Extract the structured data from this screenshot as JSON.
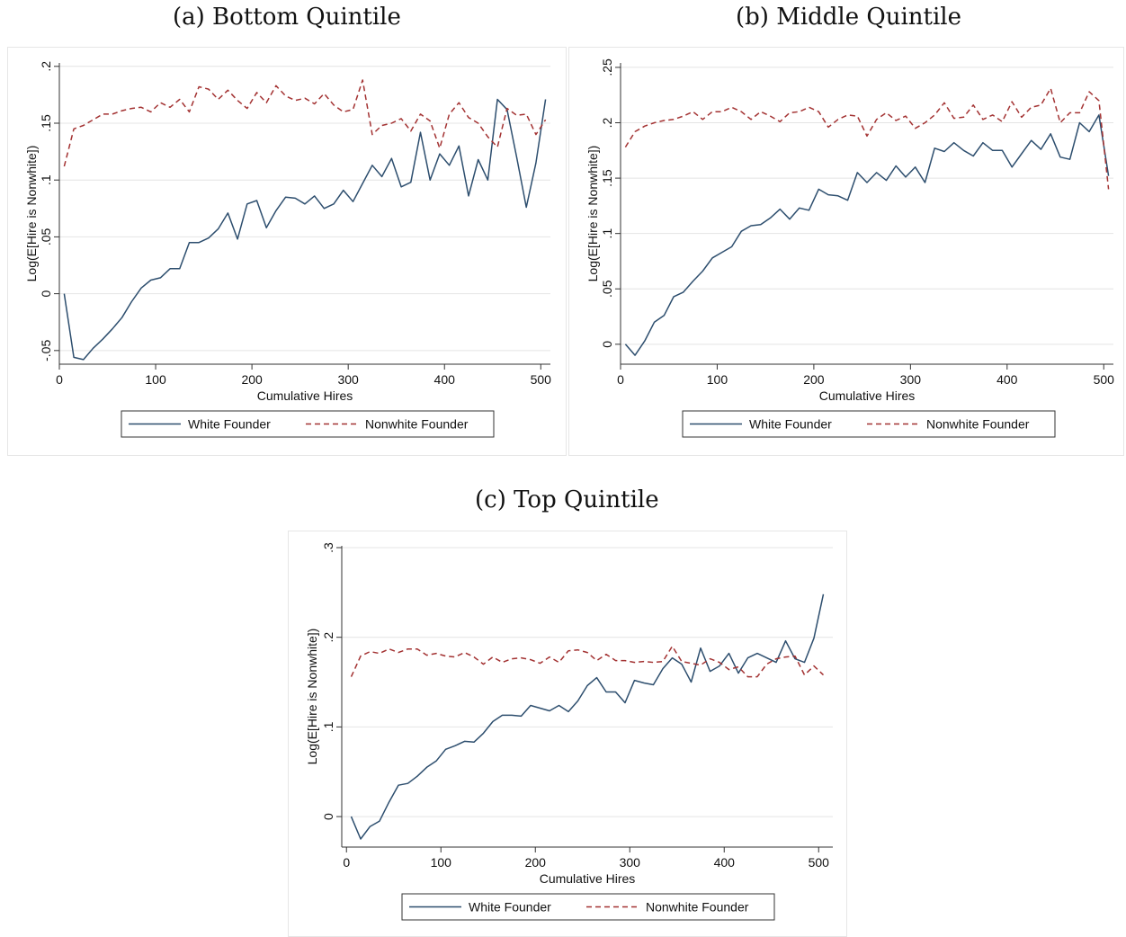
{
  "captions": {
    "a": "(a) Bottom Quintile",
    "b": "(b) Middle Quintile",
    "c": "(c) Top Quintile"
  },
  "colors": {
    "white_founder": "#2d4e6e",
    "nonwhite_founder": "#a33232",
    "grid": "#e4e4e4",
    "axis": "#333333"
  },
  "chart_data": [
    {
      "type": "line",
      "panel": "a",
      "xlabel": "Cumulative Hires",
      "ylabel": "Log(E[Hire is Nonwhite])",
      "xlim": [
        0,
        510
      ],
      "ylim": [
        -0.062,
        0.203
      ],
      "xticks": [
        0,
        100,
        200,
        300,
        400,
        500
      ],
      "xtick_labels": [
        "0",
        "100",
        "200",
        "300",
        "400",
        "500"
      ],
      "yticks": [
        -0.05,
        0,
        0.05,
        0.1,
        0.15,
        0.2
      ],
      "ytick_labels": [
        "-.05",
        "0",
        ".05",
        ".1",
        ".15",
        ".2"
      ],
      "grid": true,
      "legend_position": "bottom",
      "x": [
        5,
        15,
        25,
        35,
        45,
        55,
        65,
        75,
        85,
        95,
        105,
        115,
        125,
        135,
        145,
        155,
        165,
        175,
        185,
        195,
        205,
        215,
        225,
        235,
        245,
        255,
        265,
        275,
        285,
        295,
        305,
        315,
        325,
        335,
        345,
        355,
        365,
        375,
        385,
        395,
        405,
        415,
        425,
        435,
        445,
        455,
        465,
        475,
        485,
        495,
        505
      ],
      "series": [
        {
          "name": "White Founder",
          "style": "solid",
          "values": [
            0,
            -0.056,
            -0.058,
            -0.048,
            -0.04,
            -0.031,
            -0.021,
            -0.007,
            0.005,
            0.012,
            0.014,
            0.022,
            0.022,
            0.045,
            0.045,
            0.049,
            0.057,
            0.071,
            0.048,
            0.079,
            0.082,
            0.058,
            0.073,
            0.085,
            0.084,
            0.079,
            0.086,
            0.075,
            0.079,
            0.091,
            0.081,
            0.097,
            0.113,
            0.103,
            0.119,
            0.094,
            0.098,
            0.142,
            0.1,
            0.123,
            0.113,
            0.13,
            0.086,
            0.118,
            0.1,
            0.171,
            0.162,
            0.12,
            0.076,
            0.115,
            0.171
          ]
        },
        {
          "name": "Nonwhite Founder",
          "style": "dashed",
          "values": [
            0.112,
            0.145,
            0.148,
            0.153,
            0.158,
            0.158,
            0.161,
            0.163,
            0.164,
            0.16,
            0.168,
            0.164,
            0.171,
            0.16,
            0.182,
            0.18,
            0.171,
            0.179,
            0.17,
            0.163,
            0.177,
            0.168,
            0.183,
            0.174,
            0.17,
            0.172,
            0.167,
            0.176,
            0.166,
            0.16,
            0.162,
            0.188,
            0.14,
            0.148,
            0.15,
            0.154,
            0.143,
            0.158,
            0.152,
            0.128,
            0.158,
            0.168,
            0.155,
            0.15,
            0.138,
            0.129,
            0.163,
            0.157,
            0.158,
            0.14,
            0.153
          ]
        }
      ]
    },
    {
      "type": "line",
      "panel": "b",
      "xlabel": "Cumulative Hires",
      "ylabel": "Log(E[Hire is Nonwhite])",
      "xlim": [
        0,
        510
      ],
      "ylim": [
        -0.018,
        0.254
      ],
      "xticks": [
        0,
        100,
        200,
        300,
        400,
        500
      ],
      "xtick_labels": [
        "0",
        "100",
        "200",
        "300",
        "400",
        "500"
      ],
      "yticks": [
        0,
        0.05,
        0.1,
        0.15,
        0.2,
        0.25
      ],
      "ytick_labels": [
        "0",
        ".05",
        ".1",
        ".15",
        ".2",
        ".25"
      ],
      "grid": true,
      "legend_position": "bottom",
      "x": [
        5,
        15,
        25,
        35,
        45,
        55,
        65,
        75,
        85,
        95,
        105,
        115,
        125,
        135,
        145,
        155,
        165,
        175,
        185,
        195,
        205,
        215,
        225,
        235,
        245,
        255,
        265,
        275,
        285,
        295,
        305,
        315,
        325,
        335,
        345,
        355,
        365,
        375,
        385,
        395,
        405,
        415,
        425,
        435,
        445,
        455,
        465,
        475,
        485,
        495,
        505
      ],
      "series": [
        {
          "name": "White Founder",
          "style": "solid",
          "values": [
            0,
            -0.01,
            0.003,
            0.02,
            0.026,
            0.043,
            0.047,
            0.057,
            0.066,
            0.078,
            0.083,
            0.088,
            0.102,
            0.107,
            0.108,
            0.114,
            0.122,
            0.113,
            0.123,
            0.121,
            0.14,
            0.135,
            0.134,
            0.13,
            0.155,
            0.146,
            0.155,
            0.148,
            0.161,
            0.151,
            0.16,
            0.146,
            0.177,
            0.174,
            0.182,
            0.175,
            0.17,
            0.182,
            0.175,
            0.175,
            0.16,
            0.172,
            0.184,
            0.176,
            0.19,
            0.169,
            0.167,
            0.2,
            0.192,
            0.207,
            0.152
          ]
        },
        {
          "name": "Nonwhite Founder",
          "style": "dashed",
          "values": [
            0.178,
            0.192,
            0.197,
            0.2,
            0.202,
            0.203,
            0.206,
            0.21,
            0.203,
            0.21,
            0.21,
            0.214,
            0.21,
            0.203,
            0.21,
            0.206,
            0.201,
            0.209,
            0.21,
            0.214,
            0.21,
            0.196,
            0.203,
            0.207,
            0.206,
            0.188,
            0.203,
            0.209,
            0.202,
            0.206,
            0.195,
            0.2,
            0.207,
            0.218,
            0.204,
            0.205,
            0.216,
            0.203,
            0.207,
            0.201,
            0.219,
            0.205,
            0.214,
            0.216,
            0.231,
            0.2,
            0.209,
            0.209,
            0.228,
            0.22,
            0.14
          ]
        }
      ]
    },
    {
      "type": "line",
      "panel": "c",
      "xlabel": "Cumulative Hires",
      "ylabel": "Log(E[Hire is Nonwhite])",
      "xlim": [
        -5,
        515
      ],
      "ylim": [
        -0.034,
        0.302
      ],
      "xticks": [
        0,
        100,
        200,
        300,
        400,
        500
      ],
      "xtick_labels": [
        "0",
        "100",
        "200",
        "300",
        "400",
        "500"
      ],
      "yticks": [
        0,
        0.1,
        0.2,
        0.3
      ],
      "ytick_labels": [
        "0",
        ".1",
        ".2",
        ".3"
      ],
      "grid": true,
      "legend_position": "bottom",
      "x": [
        5,
        15,
        25,
        35,
        45,
        55,
        65,
        75,
        85,
        95,
        105,
        115,
        125,
        135,
        145,
        155,
        165,
        175,
        185,
        195,
        205,
        215,
        225,
        235,
        245,
        255,
        265,
        275,
        285,
        295,
        305,
        315,
        325,
        335,
        345,
        355,
        365,
        375,
        385,
        395,
        405,
        415,
        425,
        435,
        445,
        455,
        465,
        475,
        485,
        495,
        505
      ],
      "series": [
        {
          "name": "White Founder",
          "style": "solid",
          "values": [
            0,
            -0.025,
            -0.011,
            -0.005,
            0.016,
            0.035,
            0.037,
            0.045,
            0.055,
            0.062,
            0.075,
            0.079,
            0.084,
            0.083,
            0.093,
            0.106,
            0.113,
            0.113,
            0.112,
            0.124,
            0.121,
            0.118,
            0.124,
            0.117,
            0.129,
            0.146,
            0.155,
            0.139,
            0.139,
            0.127,
            0.152,
            0.149,
            0.147,
            0.165,
            0.177,
            0.17,
            0.15,
            0.188,
            0.162,
            0.168,
            0.182,
            0.16,
            0.177,
            0.182,
            0.177,
            0.172,
            0.196,
            0.176,
            0.172,
            0.199,
            0.248
          ]
        },
        {
          "name": "Nonwhite Founder",
          "style": "dashed",
          "values": [
            0.156,
            0.179,
            0.184,
            0.182,
            0.187,
            0.183,
            0.187,
            0.187,
            0.18,
            0.182,
            0.179,
            0.178,
            0.183,
            0.178,
            0.17,
            0.178,
            0.172,
            0.176,
            0.177,
            0.175,
            0.171,
            0.178,
            0.172,
            0.185,
            0.186,
            0.183,
            0.174,
            0.181,
            0.174,
            0.174,
            0.172,
            0.173,
            0.172,
            0.173,
            0.19,
            0.173,
            0.171,
            0.169,
            0.176,
            0.172,
            0.164,
            0.167,
            0.156,
            0.156,
            0.17,
            0.176,
            0.178,
            0.179,
            0.158,
            0.168,
            0.158
          ]
        }
      ]
    }
  ]
}
